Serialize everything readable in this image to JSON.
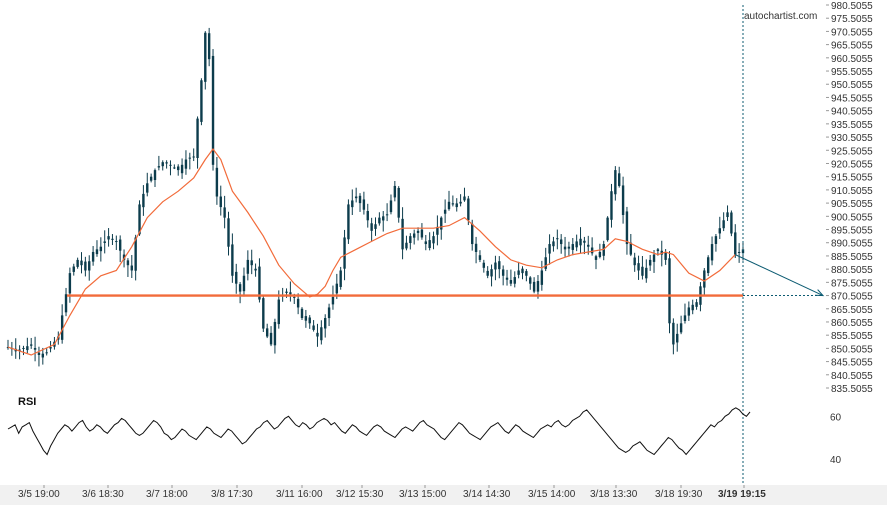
{
  "watermark": "autochartist.com",
  "colors": {
    "candle": "#0c3c4c",
    "moving_average": "#f26b3a",
    "support": "#f26b3a",
    "projection": "#0c5b72",
    "rsi_line": "#111111",
    "axis_text": "#333333",
    "grid": "#ececec"
  },
  "chart_data": [
    {
      "type": "candlestick",
      "title": "",
      "ylim": [
        835.5055,
        980.5055
      ],
      "y_ticks": [
        "980.5055",
        "975.5055",
        "970.5055",
        "965.5055",
        "960.5055",
        "955.5055",
        "950.5055",
        "945.5055",
        "940.5055",
        "935.5055",
        "930.5055",
        "925.5055",
        "920.5055",
        "915.5055",
        "910.5055",
        "905.5055",
        "900.5055",
        "895.5055",
        "890.5055",
        "885.5055",
        "880.5055",
        "875.5055",
        "870.5055",
        "865.5055",
        "860.5055",
        "855.5055",
        "850.5055",
        "845.5055",
        "840.5055",
        "835.5055"
      ],
      "x_labels": [
        "3/5 19:00",
        "3/6 18:30",
        "3/7 18:00",
        "3/8 17:30",
        "3/11 16:00",
        "3/12 15:30",
        "3/13 15:00",
        "3/14 14:30",
        "3/15 14:00",
        "3/18 13:30",
        "3/18 19:30",
        "3/19 19:15"
      ],
      "current_time_label": "3/19 19:15",
      "close_path": [
        [
          0,
          851
        ],
        [
          3,
          850
        ],
        [
          6,
          852
        ],
        [
          8,
          848
        ],
        [
          10,
          849
        ],
        [
          13,
          855
        ],
        [
          16,
          879
        ],
        [
          18,
          884
        ],
        [
          20,
          880
        ],
        [
          22,
          887
        ],
        [
          24,
          889
        ],
        [
          26,
          893
        ],
        [
          28,
          891
        ],
        [
          30,
          884
        ],
        [
          32,
          880
        ],
        [
          34,
          905
        ],
        [
          36,
          913
        ],
        [
          38,
          918
        ],
        [
          40,
          921
        ],
        [
          42,
          920
        ],
        [
          44,
          918
        ],
        [
          46,
          922
        ],
        [
          48,
          923
        ],
        [
          50,
          952
        ],
        [
          51,
          970
        ],
        [
          52,
          960
        ],
        [
          53,
          920
        ],
        [
          54,
          908
        ],
        [
          56,
          900
        ],
        [
          58,
          878
        ],
        [
          60,
          872
        ],
        [
          62,
          884
        ],
        [
          64,
          880
        ],
        [
          66,
          858
        ],
        [
          68,
          852
        ],
        [
          70,
          869
        ],
        [
          72,
          872
        ],
        [
          74,
          870
        ],
        [
          76,
          862
        ],
        [
          78,
          860
        ],
        [
          80,
          855
        ],
        [
          82,
          862
        ],
        [
          84,
          870
        ],
        [
          86,
          880
        ],
        [
          88,
          905
        ],
        [
          90,
          908
        ],
        [
          92,
          903
        ],
        [
          94,
          895
        ],
        [
          96,
          900
        ],
        [
          98,
          901
        ],
        [
          100,
          912
        ],
        [
          102,
          888
        ],
        [
          104,
          893
        ],
        [
          106,
          895
        ],
        [
          108,
          890
        ],
        [
          110,
          893
        ],
        [
          112,
          900
        ],
        [
          114,
          906
        ],
        [
          116,
          904
        ],
        [
          118,
          908
        ],
        [
          120,
          890
        ],
        [
          122,
          884
        ],
        [
          124,
          878
        ],
        [
          126,
          883
        ],
        [
          128,
          878
        ],
        [
          130,
          875
        ],
        [
          132,
          880
        ],
        [
          134,
          878
        ],
        [
          136,
          872
        ],
        [
          138,
          880
        ],
        [
          140,
          890
        ],
        [
          142,
          892
        ],
        [
          144,
          888
        ],
        [
          146,
          890
        ],
        [
          148,
          892
        ],
        [
          150,
          889
        ],
        [
          152,
          884
        ],
        [
          154,
          890
        ],
        [
          156,
          910
        ],
        [
          157,
          918
        ],
        [
          158,
          912
        ],
        [
          160,
          890
        ],
        [
          162,
          882
        ],
        [
          164,
          878
        ],
        [
          166,
          884
        ],
        [
          168,
          888
        ],
        [
          170,
          884
        ],
        [
          171,
          860
        ],
        [
          172,
          852
        ],
        [
          174,
          860
        ],
        [
          176,
          866
        ],
        [
          178,
          868
        ],
        [
          180,
          880
        ],
        [
          182,
          890
        ],
        [
          184,
          896
        ],
        [
          186,
          902
        ],
        [
          188,
          886
        ],
        [
          190,
          888
        ]
      ],
      "ma_path": [
        [
          0,
          851
        ],
        [
          6,
          848
        ],
        [
          12,
          852
        ],
        [
          16,
          863
        ],
        [
          20,
          873
        ],
        [
          24,
          878
        ],
        [
          28,
          880
        ],
        [
          32,
          889
        ],
        [
          36,
          900
        ],
        [
          40,
          906
        ],
        [
          44,
          910
        ],
        [
          48,
          915
        ],
        [
          51,
          922
        ],
        [
          53,
          926
        ],
        [
          55,
          922
        ],
        [
          58,
          910
        ],
        [
          62,
          902
        ],
        [
          66,
          893
        ],
        [
          70,
          882
        ],
        [
          74,
          875
        ],
        [
          78,
          870
        ],
        [
          80,
          871
        ],
        [
          82,
          874
        ],
        [
          84,
          880
        ],
        [
          86,
          885
        ],
        [
          90,
          888
        ],
        [
          94,
          891
        ],
        [
          98,
          894
        ],
        [
          102,
          896
        ],
        [
          106,
          896
        ],
        [
          110,
          896
        ],
        [
          114,
          897
        ],
        [
          118,
          900
        ],
        [
          122,
          895
        ],
        [
          126,
          889
        ],
        [
          130,
          884
        ],
        [
          134,
          882
        ],
        [
          138,
          881
        ],
        [
          142,
          884
        ],
        [
          146,
          886
        ],
        [
          150,
          887
        ],
        [
          154,
          888
        ],
        [
          157,
          892
        ],
        [
          160,
          891
        ],
        [
          164,
          888
        ],
        [
          168,
          886
        ],
        [
          170,
          887
        ],
        [
          172,
          886
        ],
        [
          176,
          879
        ],
        [
          180,
          876
        ],
        [
          184,
          880
        ],
        [
          188,
          886
        ]
      ],
      "support_level": 870.5055,
      "projection": {
        "from_index": 188,
        "from_value": 886,
        "to_value": 870.5055
      },
      "volatility_box_value": 893
    },
    {
      "type": "line",
      "title": "RSI",
      "ylim": [
        30,
        70
      ],
      "y_ticks": [
        "60",
        "40"
      ],
      "values": [
        54,
        55,
        56,
        52,
        55,
        56,
        57,
        53,
        50,
        47,
        44,
        42,
        46,
        49,
        52,
        54,
        56,
        55,
        53,
        55,
        57,
        58,
        55,
        53,
        54,
        56,
        55,
        53,
        52,
        54,
        56,
        57,
        59,
        58,
        56,
        54,
        52,
        51,
        52,
        54,
        56,
        58,
        57,
        55,
        52,
        51,
        49,
        50,
        52,
        54,
        53,
        51,
        50,
        49,
        51,
        53,
        55,
        54,
        52,
        51,
        50,
        52,
        54,
        53,
        51,
        49,
        47,
        48,
        50,
        52,
        54,
        55,
        57,
        58,
        56,
        54,
        55,
        57,
        59,
        60,
        58,
        56,
        55,
        57,
        56,
        54,
        55,
        57,
        58,
        59,
        58,
        56,
        57,
        55,
        53,
        52,
        54,
        56,
        55,
        53,
        52,
        51,
        53,
        55,
        56,
        55,
        53,
        52,
        51,
        50,
        52,
        54,
        55,
        54,
        53,
        55,
        57,
        58,
        56,
        55,
        54,
        52,
        50,
        49,
        51,
        53,
        55,
        57,
        56,
        54,
        52,
        51,
        50,
        49,
        51,
        53,
        55,
        56,
        57,
        55,
        53,
        52,
        54,
        56,
        55,
        53,
        52,
        51,
        50,
        52,
        54,
        55,
        56,
        55,
        57,
        58,
        56,
        55,
        56,
        58,
        59,
        60,
        62,
        63,
        61,
        59,
        57,
        55,
        53,
        51,
        49,
        47,
        45,
        44,
        43,
        44,
        46,
        47,
        48,
        46,
        44,
        43,
        42,
        44,
        46,
        48,
        50,
        49,
        47,
        45,
        44,
        42,
        44,
        46,
        48,
        50,
        52,
        54,
        56,
        55,
        57,
        58,
        60,
        61,
        63,
        64,
        63,
        61,
        60,
        62
      ]
    }
  ]
}
